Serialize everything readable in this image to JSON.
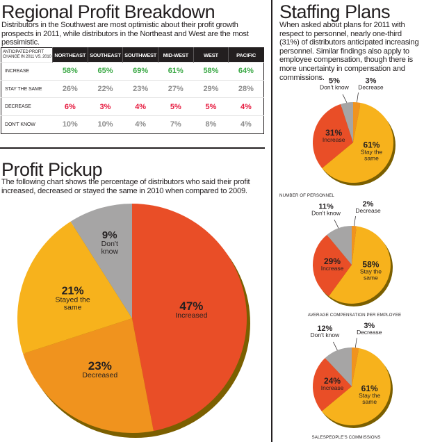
{
  "regional": {
    "title": "Regional Profit Breakdown",
    "intro": "Distributors in the Southwest are most optimistic about their profit growth prospects in 2011, while distributors in the Northeast and West are the most pessimistic."
  },
  "staffing": {
    "title": "Staffing Plans",
    "intro": "When asked about plans for 2011 with respect to personnel, nearly one-third (31%) of distributors anticipated increasing personnel. Similar findings also apply to employee compensation, though there is more uncertainty in compensation and commissions."
  },
  "pickup": {
    "title": "Profit Pickup",
    "intro": "The following chart shows the percentage of distributors who said their profit increased, decreased or stayed the same in 2010 when compared to 2009."
  },
  "colors": {
    "increase": "#e94e27",
    "decreased": "#f0931e",
    "stayed": "#f7b21c",
    "dont_know": "#a6a5a5",
    "decrease_thin": "#f0931e",
    "shadow": "#7b5f00",
    "positive": "#3aa845",
    "negative": "#e6173c"
  },
  "chart_data": [
    {
      "type": "table",
      "corner_label": "ANTICIPATED PROFIT CHANGE IN 2011 VS. 2010",
      "columns": [
        "NORTHEAST",
        "SOUTHEAST",
        "SOUTHWEST",
        "MID-WEST",
        "WEST",
        "PACIFIC"
      ],
      "rows": [
        {
          "label": "INCREASE",
          "values": [
            "58%",
            "65%",
            "69%",
            "61%",
            "58%",
            "64%"
          ]
        },
        {
          "label": "STAY THE SAME",
          "values": [
            "26%",
            "22%",
            "23%",
            "27%",
            "29%",
            "28%"
          ]
        },
        {
          "label": "DECREASE",
          "values": [
            "6%",
            "3%",
            "4%",
            "5%",
            "5%",
            "4%"
          ]
        },
        {
          "label": "DON'T KNOW",
          "values": [
            "10%",
            "10%",
            "4%",
            "7%",
            "8%",
            "4%"
          ]
        }
      ]
    },
    {
      "type": "pie",
      "title": "Profit Pickup",
      "slices": [
        {
          "label": "Increased",
          "value": 47,
          "text": "47%",
          "color": "#e94e27"
        },
        {
          "label": "Decreased",
          "value": 23,
          "text": "23%",
          "color": "#f0931e"
        },
        {
          "label": "Stayed the same",
          "value": 21,
          "text": "21%",
          "color": "#f7b21c"
        },
        {
          "label": "Don't know",
          "value": 9,
          "text": "9%",
          "color": "#a6a5a5"
        }
      ]
    },
    {
      "type": "pie",
      "caption": "NUMBER OF PERSONNEL",
      "slices": [
        {
          "label": "Decrease",
          "value": 3,
          "text": "3%",
          "color": "#f0931e"
        },
        {
          "label": "Stay the same",
          "value": 61,
          "text": "61%",
          "color": "#f7b21c"
        },
        {
          "label": "Increase",
          "value": 31,
          "text": "31%",
          "color": "#e94e27"
        },
        {
          "label": "Don't know",
          "value": 5,
          "text": "5%",
          "color": "#a6a5a5"
        }
      ]
    },
    {
      "type": "pie",
      "caption": "AVERAGE COMPENSATION PER EMPLOYEE",
      "slices": [
        {
          "label": "Decrease",
          "value": 2,
          "text": "2%",
          "color": "#f0931e"
        },
        {
          "label": "Stay the same",
          "value": 58,
          "text": "58%",
          "color": "#f7b21c"
        },
        {
          "label": "Increase",
          "value": 29,
          "text": "29%",
          "color": "#e94e27"
        },
        {
          "label": "Don't know",
          "value": 11,
          "text": "11%",
          "color": "#a6a5a5"
        }
      ]
    },
    {
      "type": "pie",
      "caption": "SALESPEOPLE'S COMMISSIONS",
      "slices": [
        {
          "label": "Decrease",
          "value": 3,
          "text": "3%",
          "color": "#f0931e"
        },
        {
          "label": "Stay the same",
          "value": 61,
          "text": "61%",
          "color": "#f7b21c"
        },
        {
          "label": "Increase",
          "value": 24,
          "text": "24%",
          "color": "#e94e27"
        },
        {
          "label": "Don't know",
          "value": 12,
          "text": "12%",
          "color": "#a6a5a5"
        }
      ]
    }
  ]
}
